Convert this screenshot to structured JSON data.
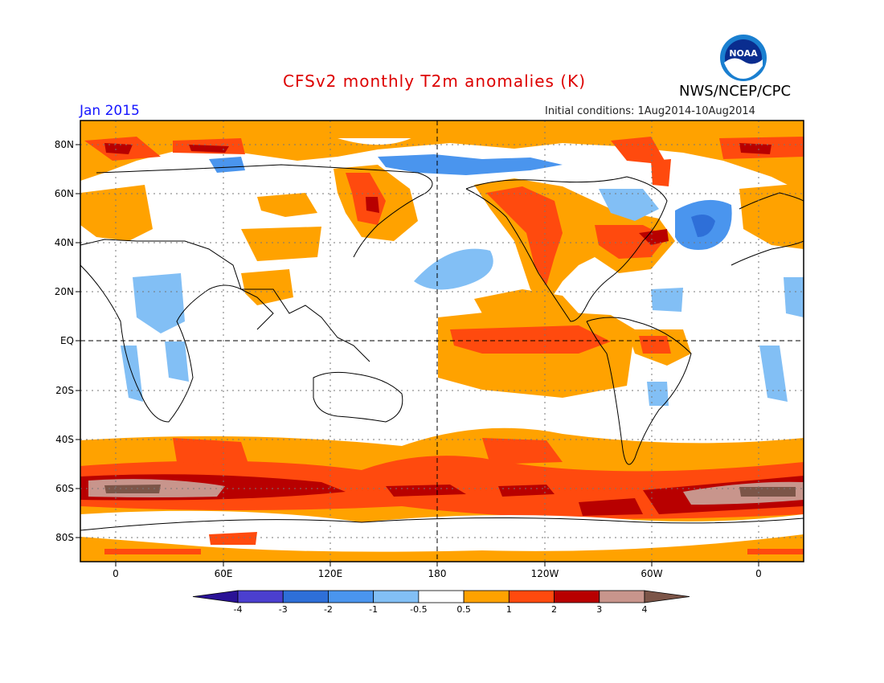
{
  "header": {
    "title": "CFSv2 monthly T2m anomalies (K)",
    "org": "NWS/NCEP/CPC",
    "target_month": "Jan 2015",
    "initial_conditions": "Initial conditions: 1Aug2014-10Aug2014",
    "logo_text": "NOAA"
  },
  "axes": {
    "lat_labels": [
      "80N",
      "60N",
      "40N",
      "20N",
      "EQ",
      "20S",
      "40S",
      "60S",
      "80S"
    ],
    "lon_labels": [
      "0",
      "60E",
      "120E",
      "180",
      "120W",
      "60W",
      "0"
    ]
  },
  "colorbar": {
    "ticks": [
      "-4",
      "-3",
      "-2",
      "-1",
      "-0.5",
      "0.5",
      "1",
      "2",
      "3",
      "4"
    ],
    "colors": [
      "#2a1296",
      "#4b3fcf",
      "#2e6fd8",
      "#4a95ee",
      "#82bff5",
      "#ffffff",
      "#ffa200",
      "#ff4a0e",
      "#b80000",
      "#c8958c",
      "#7c5548"
    ]
  }
}
